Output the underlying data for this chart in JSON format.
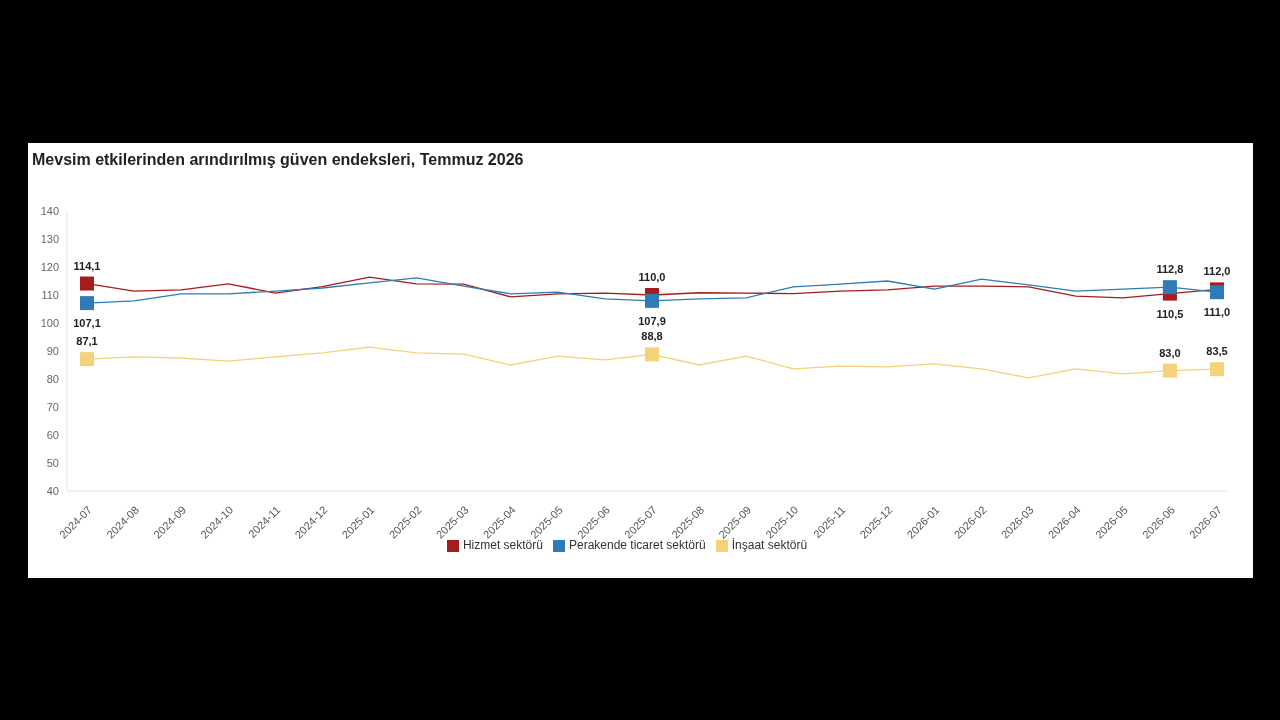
{
  "chart_data": {
    "type": "line",
    "title": "Mevsim etkilerinden arındırılmış güven endeksleri, Temmuz 2026",
    "categories": [
      "2024-07",
      "2024-08",
      "2024-09",
      "2024-10",
      "2024-11",
      "2024-12",
      "2025-01",
      "2025-02",
      "2025-03",
      "2025-04",
      "2025-05",
      "2025-06",
      "2025-07",
      "2025-08",
      "2025-09",
      "2025-10",
      "2025-11",
      "2025-12",
      "2026-01",
      "2026-02",
      "2026-03",
      "2026-04",
      "2026-05",
      "2026-06",
      "2026-07"
    ],
    "ylim": [
      40,
      140
    ],
    "yticks": [
      40,
      50,
      60,
      70,
      80,
      90,
      100,
      110,
      120,
      130,
      140
    ],
    "grid": false,
    "legend": "bottom",
    "line_style": "solid",
    "series": [
      {
        "name": "Hizmet sektörü",
        "color": "#a61c1c",
        "values": [
          114.1,
          111.4,
          111.8,
          114,
          110.7,
          113,
          116.4,
          114,
          113.9,
          109.3,
          110.4,
          110.7,
          110.0,
          110.8,
          110.7,
          110.5,
          111.4,
          111.8,
          113.2,
          113.2,
          112.9,
          109.6,
          109,
          110.5,
          112.0
        ],
        "value_labels": [
          "114,1",
          null,
          null,
          null,
          null,
          null,
          null,
          null,
          null,
          null,
          null,
          null,
          "110,0",
          null,
          null,
          null,
          null,
          null,
          null,
          null,
          null,
          null,
          null,
          "110,5",
          "112,0"
        ]
      },
      {
        "name": "Perakende ticaret sektörü",
        "color": "#2e7bb8",
        "values": [
          107.1,
          107.9,
          110.4,
          110.4,
          111.4,
          112.5,
          114.3,
          116.1,
          113.2,
          110.4,
          111,
          108.6,
          107.9,
          108.6,
          109,
          112.9,
          113.9,
          115,
          112.1,
          115.7,
          113.6,
          111.4,
          112.1,
          112.8,
          111.0
        ],
        "value_labels": [
          "107,1",
          null,
          null,
          null,
          null,
          null,
          null,
          null,
          null,
          null,
          null,
          null,
          "107,9",
          null,
          null,
          null,
          null,
          null,
          null,
          null,
          null,
          null,
          null,
          "112,8",
          "111,0"
        ]
      },
      {
        "name": "İnşaat sektörü",
        "color": "#f5d27a",
        "values": [
          87.1,
          87.9,
          87.5,
          86.4,
          87.9,
          89.3,
          91.4,
          89.3,
          88.9,
          85,
          88.2,
          86.8,
          88.8,
          85,
          88.2,
          83.6,
          84.6,
          84.3,
          85.4,
          83.6,
          80.4,
          83.6,
          81.8,
          83.0,
          83.5
        ],
        "value_labels": [
          "87,1",
          null,
          null,
          null,
          null,
          null,
          null,
          null,
          null,
          null,
          null,
          null,
          "88,8",
          null,
          null,
          null,
          null,
          null,
          null,
          null,
          null,
          null,
          null,
          "83,0",
          "83,5"
        ]
      }
    ]
  }
}
